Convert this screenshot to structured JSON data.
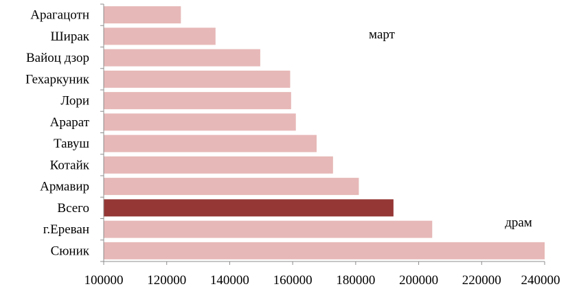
{
  "chart_data": {
    "type": "bar",
    "orientation": "horizontal",
    "categories": [
      "Арагацотн",
      "Ширак",
      "Вайоц дзор",
      "Гехаркуник",
      "Лори",
      "Арарат",
      "Тавуш",
      "Котайк",
      "Армавир",
      "Всего",
      "г.Ереван",
      "Сюник"
    ],
    "values": [
      124500,
      135500,
      149700,
      159200,
      159500,
      161000,
      167600,
      172800,
      181000,
      192000,
      204300,
      240000
    ],
    "highlight_category": "Всего",
    "colors": {
      "bar": "#e6b8b7",
      "highlight": "#953735",
      "axis": "#8c8c8c"
    },
    "xlim": [
      100000,
      240000
    ],
    "xticks": [
      "100000",
      "120000",
      "140000",
      "160000",
      "180000",
      "200000",
      "220000",
      "240000"
    ],
    "annotations": [
      "март",
      "драм"
    ],
    "grid": false,
    "legend": false,
    "title": "",
    "xlabel": "",
    "ylabel": ""
  }
}
